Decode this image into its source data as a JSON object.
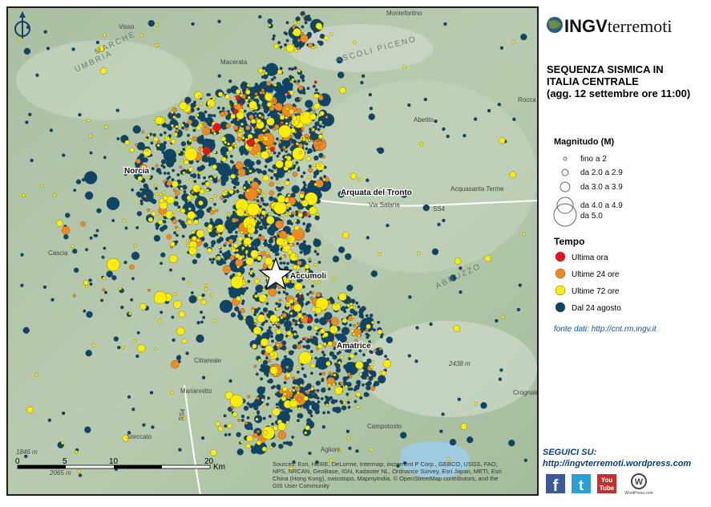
{
  "header": {
    "logo_bold": "INGV",
    "logo_light": "terremoti",
    "title": [
      "SEQUENZA SISMICA IN",
      "ITALIA CENTRALE",
      "(agg. 12 settembre ore 11:00)"
    ]
  },
  "legend": {
    "magnitude_title": "Magnitudo (M)",
    "magnitude": [
      "fino a 2",
      "da 2.0 a 2.9",
      "da 3.0 a 3.9",
      "da 4.0 a 4.9",
      "da 5.0"
    ],
    "time_title": "Tempo",
    "time": [
      {
        "label": "Ultima ora",
        "color": "#e8141c"
      },
      {
        "label": "Ultime 24 ore",
        "color": "#f08a1c"
      },
      {
        "label": "Ultime 72 ore",
        "color": "#ffee00"
      },
      {
        "label": "Dal 24 agosto",
        "color": "#0c4568"
      }
    ]
  },
  "source": "fonte dati: http://cnt.rm.ingv.it",
  "follow": {
    "title": "SEGUICI SU:",
    "url": "http://ingvterremoti.wordpress.com",
    "icons": [
      "f",
      "t",
      "You",
      "Tube",
      "W",
      "WordPress.com"
    ]
  },
  "map": {
    "places": [
      "Norcia",
      "Arquata del Tronto",
      "Accumoli",
      "Amatrice",
      "Montefortino",
      "Visso",
      "Macerata",
      "Abetito",
      "Acquasanta Terme",
      "Cascia",
      "Cittareale",
      "Mariannitto",
      "Steccato",
      "Campotosto",
      "Aglioni",
      "Crognale",
      "Rocca"
    ],
    "regions": [
      "MARCHE",
      "UMBRIA",
      "ASCOLI PICENO",
      "ABRUZZO"
    ],
    "elevations": [
      "1265 m",
      "2438 m",
      "1846 m",
      "2065 m"
    ],
    "roads": [
      "SS4",
      "SS4",
      "Via Salaria"
    ],
    "scale": {
      "ticks": [
        "0",
        "5",
        "10",
        "20"
      ],
      "unit": "Km"
    },
    "attribution": [
      "Sources: Esri, HERE, DeLorme, Intermap, increment P Corp., GEBCO, USGS, FAO,",
      "NPS, NRCAN, GeoBase, IGN, Kadaster NL, Ordnance Survey, Esri Japan, METI, Esri",
      "China (Hong Kong), swisstopo, MapmyIndia, © OpenStreetMap contributors, and the",
      "GIS User Community"
    ]
  }
}
